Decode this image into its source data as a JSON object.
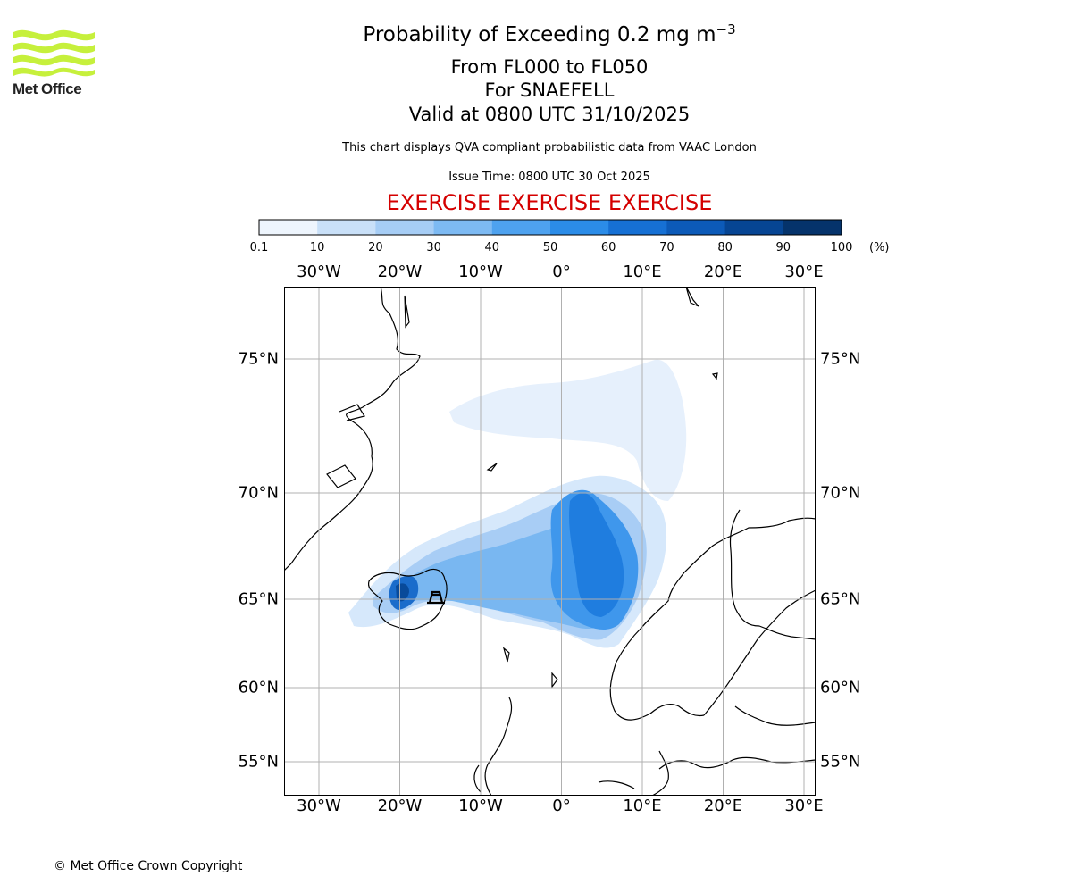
{
  "header": {
    "title_main": "Probability of Exceeding 0.2 mg m",
    "title_exponent": "−3",
    "level_range": "From FL000 to FL050",
    "volcano": "For SNAEFELL",
    "valid_time": "Valid at 0800 UTC 31/10/2025",
    "description": "This chart displays QVA compliant probabilistic data from VAAC London",
    "issue_time": "Issue Time: 0800 UTC 30 Oct 2025",
    "exercise_banner": "EXERCISE EXERCISE EXERCISE"
  },
  "logo": {
    "text": "Met Office",
    "color": "#c6f03c"
  },
  "colorbar": {
    "unit": "(%)",
    "ticks": [
      "0.1",
      "10",
      "20",
      "30",
      "40",
      "50",
      "60",
      "70",
      "80",
      "90",
      "100"
    ],
    "colors": [
      "#eef5fd",
      "#c9e0f8",
      "#a6cdf5",
      "#7dbaf3",
      "#4ea2ef",
      "#2b8ce8",
      "#1670d4",
      "#0c5ab8",
      "#064593",
      "#05336b"
    ]
  },
  "map": {
    "lon_labels": [
      "30°W",
      "20°W",
      "10°W",
      "0°",
      "10°E",
      "20°E",
      "30°E"
    ],
    "lon_values": [
      -30,
      -20,
      -10,
      0,
      10,
      20,
      30
    ],
    "lat_labels": [
      "75°N",
      "70°N",
      "65°N",
      "60°N",
      "55°N"
    ],
    "lat_values": [
      75,
      70,
      65,
      60,
      55
    ],
    "volcano_marker": {
      "name": "SNAEFELL",
      "lon": -15.8,
      "lat": 64.8
    }
  },
  "footer": {
    "copyright": "© Met Office Crown Copyright"
  }
}
